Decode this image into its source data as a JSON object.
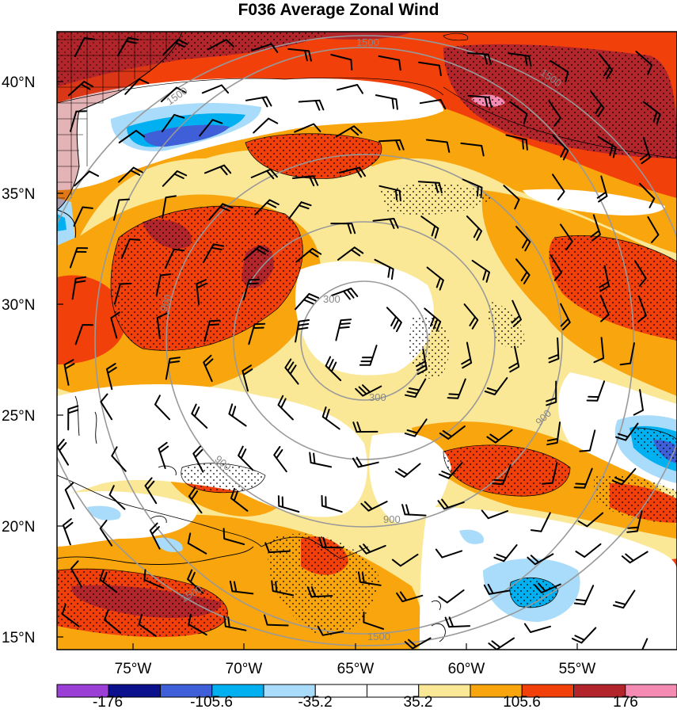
{
  "title": "F036 Average Zonal Wind",
  "map": {
    "lat_labels": [
      "40°N",
      "35°N",
      "30°N",
      "25°N",
      "20°N",
      "15°N"
    ],
    "lon_labels": [
      "75°W",
      "70°W",
      "65°W",
      "60°W",
      "55°W"
    ],
    "ring_labels": [
      "300",
      "300",
      "900",
      "900",
      "900",
      "900",
      "1500",
      "1500",
      "1500",
      "1500",
      "1500"
    ]
  },
  "colorbar": {
    "colors": [
      "#9c3fd6",
      "#0b108c",
      "#3e5fd8",
      "#00b0f0",
      "#a9dcfa",
      "#ffffff",
      "#ffffff",
      "#fbe897",
      "#f9a50e",
      "#f2400b",
      "#b2252b",
      "#f58bb2"
    ],
    "labels": [
      "-176",
      "-105.6",
      "-35.2",
      "35.2",
      "105.6",
      "176"
    ]
  }
}
